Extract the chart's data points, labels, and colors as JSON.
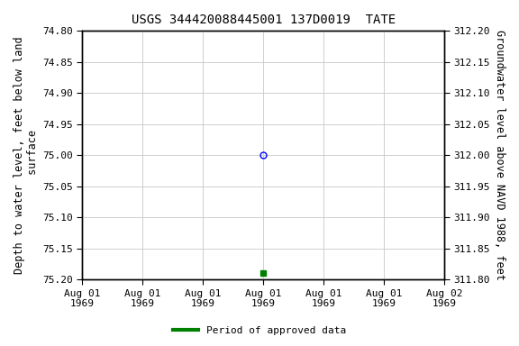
{
  "title": "USGS 344420088445001 137D0019  TATE",
  "ylabel_left": "Depth to water level, feet below land\n surface",
  "ylabel_right": "Groundwater level above NAVD 1988, feet",
  "ylim_left": [
    74.8,
    75.2
  ],
  "ylim_right": [
    311.8,
    312.2
  ],
  "yticks_left": [
    74.8,
    74.85,
    74.9,
    74.95,
    75.0,
    75.05,
    75.1,
    75.15,
    75.2
  ],
  "yticks_right": [
    311.8,
    311.85,
    311.9,
    311.95,
    312.0,
    312.05,
    312.1,
    312.15,
    312.2
  ],
  "xlim": [
    0,
    6
  ],
  "xtick_positions": [
    0,
    1,
    2,
    3,
    4,
    5,
    6
  ],
  "xtick_labels": [
    "Aug 01\n1969",
    "Aug 01\n1969",
    "Aug 01\n1969",
    "Aug 01\n1969",
    "Aug 01\n1969",
    "Aug 01\n1969",
    "Aug 02\n1969"
  ],
  "data_point_x": 3,
  "data_point_y": 75.0,
  "data_point_color": "blue",
  "data_point_marker": "o",
  "data_point_facecolor": "none",
  "green_marker_x": 3,
  "green_marker_y": 75.19,
  "green_marker_color": "#008000",
  "green_marker_size": 5,
  "background_color": "#ffffff",
  "grid_color": "#c8c8c8",
  "legend_label": "Period of approved data",
  "legend_color": "#008000",
  "font_family": "monospace",
  "title_fontsize": 10,
  "axis_label_fontsize": 8.5,
  "tick_fontsize": 8
}
